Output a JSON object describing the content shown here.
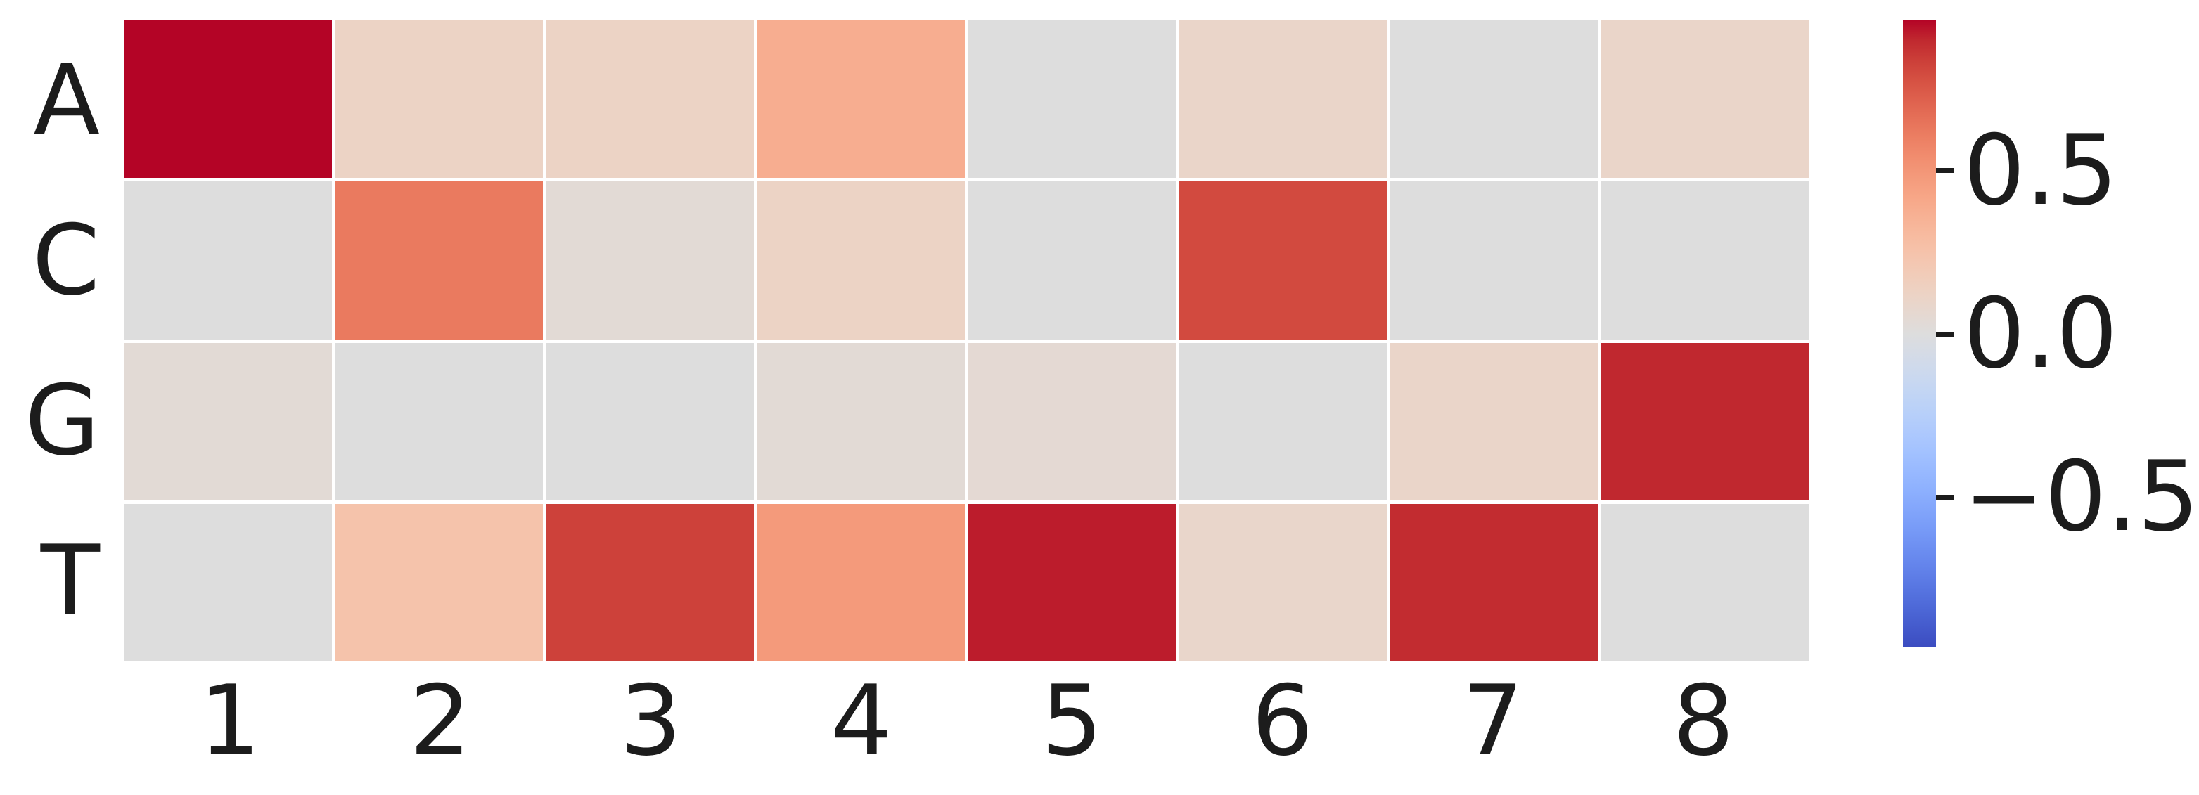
{
  "figure": {
    "background": "#ffffff",
    "text_color": "#1c1c1c"
  },
  "chart_data": {
    "type": "heatmap",
    "rows": [
      "A",
      "C",
      "G",
      "T"
    ],
    "columns": [
      "1",
      "2",
      "3",
      "4",
      "5",
      "6",
      "7",
      "8"
    ],
    "values": [
      [
        0.96,
        0.12,
        0.12,
        0.38,
        0.0,
        0.1,
        0.0,
        0.1
      ],
      [
        0.0,
        0.62,
        0.04,
        0.12,
        0.0,
        0.8,
        0.0,
        0.0
      ],
      [
        0.04,
        0.0,
        0.0,
        0.04,
        0.05,
        0.0,
        0.1,
        0.9
      ],
      [
        0.0,
        0.25,
        0.83,
        0.48,
        0.92,
        0.09,
        0.89,
        0.0
      ]
    ],
    "colormap": "coolwarm",
    "vmin": -0.96,
    "vmax": 0.96,
    "grid_on": false,
    "cell_gap_color": "#ffffff",
    "colorbar": {
      "position": "right",
      "min_color": "#3b4cc0",
      "mid_color": "#dddddd",
      "max_color": "#b40426",
      "ticks": [
        {
          "value": 0.5,
          "label": "0.5"
        },
        {
          "value": 0.0,
          "label": "0.0"
        },
        {
          "value": -0.5,
          "label": "−0.5"
        }
      ]
    }
  }
}
